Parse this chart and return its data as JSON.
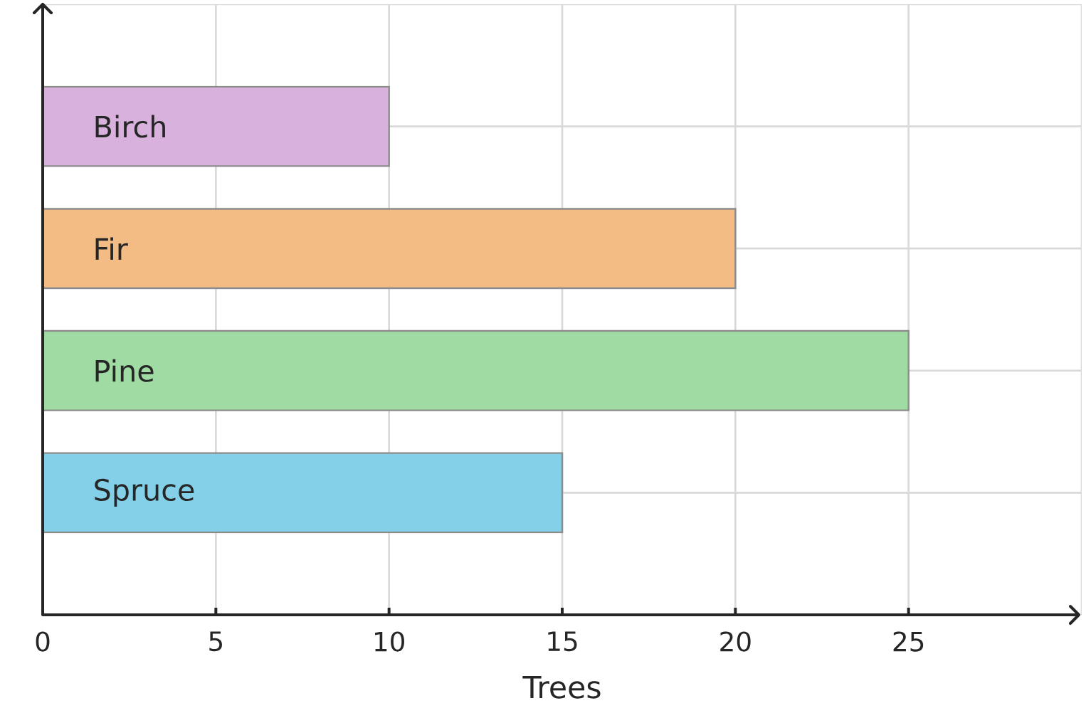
{
  "chart_data": {
    "type": "bar",
    "orientation": "horizontal",
    "categories": [
      "Birch",
      "Fir",
      "Pine",
      "Spruce"
    ],
    "values": [
      10,
      20,
      25,
      15
    ],
    "colors": [
      "#d8b2dc",
      "#f2bc84",
      "#a0dba3",
      "#83d0e8"
    ],
    "xlabel": "Trees",
    "xlim": [
      0,
      30
    ],
    "xticks": [
      0,
      5,
      10,
      15,
      20,
      25
    ],
    "grid": true
  }
}
